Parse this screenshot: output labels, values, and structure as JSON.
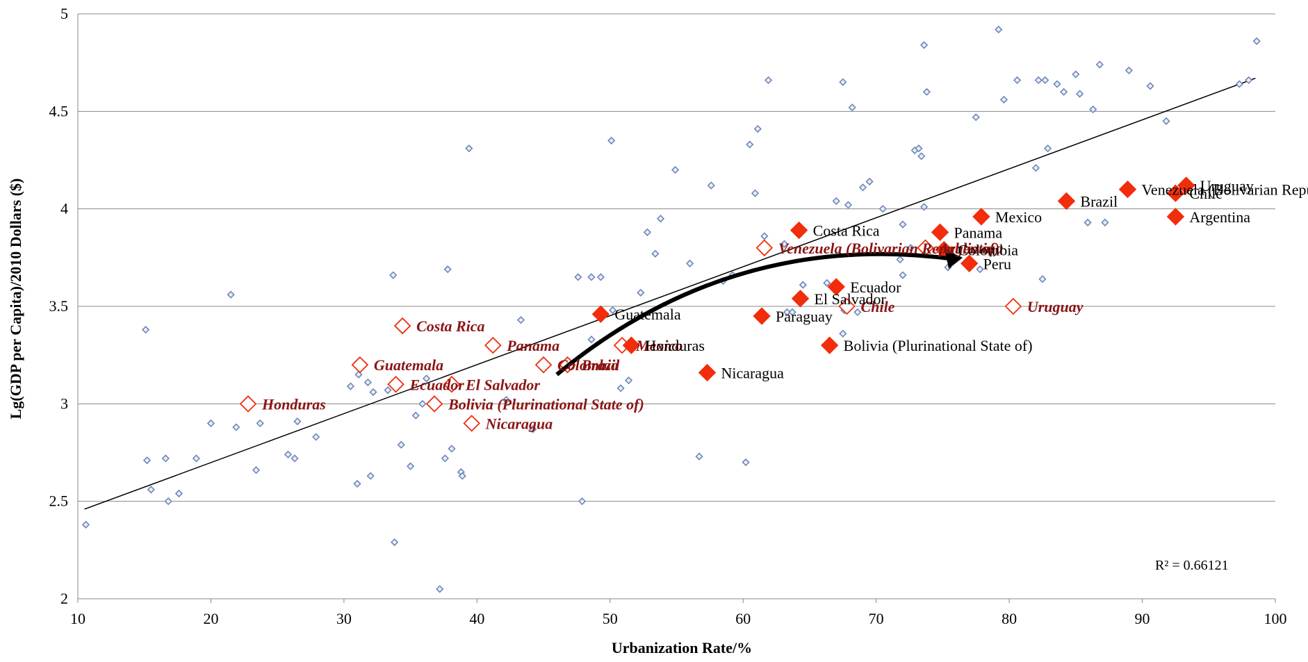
{
  "chart_data": {
    "type": "scatter",
    "xlabel": "Urbanization Rate/%",
    "ylabel": "Lg(GDP per Capita)/2010 Dollars ($)",
    "xlim": [
      10,
      100
    ],
    "ylim": [
      2,
      5
    ],
    "xticks": [
      10,
      20,
      30,
      40,
      50,
      60,
      70,
      80,
      90,
      100
    ],
    "yticks": [
      2,
      2.5,
      3,
      3.5,
      4,
      4.5,
      5
    ],
    "grid": "horizontal",
    "r_squared_text": "R² = 0.66121",
    "colors": {
      "world": "#6f86b8",
      "latam": "#f12d0c",
      "trendline": "#000000",
      "grid": "#888888",
      "label_1980": "#8b1414"
    },
    "trendline": {
      "x": [
        10.5,
        98.5
      ],
      "y": [
        2.46,
        4.67
      ]
    },
    "arrow": {
      "from": [
        46,
        3.15
      ],
      "to": [
        76.5,
        3.75
      ]
    },
    "world_points": [
      [
        10.6,
        2.38
      ],
      [
        15.1,
        3.38
      ],
      [
        15.2,
        2.71
      ],
      [
        15.5,
        2.56
      ],
      [
        16.6,
        2.72
      ],
      [
        16.8,
        2.5
      ],
      [
        17.6,
        2.54
      ],
      [
        18.9,
        2.72
      ],
      [
        20.0,
        2.9
      ],
      [
        21.5,
        3.56
      ],
      [
        21.9,
        2.88
      ],
      [
        23.4,
        2.66
      ],
      [
        23.7,
        2.9
      ],
      [
        25.8,
        2.74
      ],
      [
        26.3,
        2.72
      ],
      [
        26.5,
        2.91
      ],
      [
        27.9,
        2.83
      ],
      [
        30.5,
        3.09
      ],
      [
        31.0,
        2.59
      ],
      [
        31.1,
        3.15
      ],
      [
        31.8,
        3.11
      ],
      [
        32.0,
        2.63
      ],
      [
        32.2,
        3.06
      ],
      [
        33.3,
        3.07
      ],
      [
        33.7,
        3.66
      ],
      [
        33.8,
        2.29
      ],
      [
        34.3,
        2.79
      ],
      [
        35.0,
        2.68
      ],
      [
        35.4,
        2.94
      ],
      [
        35.9,
        3.0
      ],
      [
        36.2,
        3.13
      ],
      [
        37.2,
        2.05
      ],
      [
        37.6,
        2.72
      ],
      [
        37.8,
        3.69
      ],
      [
        38.1,
        2.77
      ],
      [
        38.8,
        2.65
      ],
      [
        38.9,
        2.63
      ],
      [
        39.4,
        4.31
      ],
      [
        42.2,
        3.02
      ],
      [
        43.3,
        3.43
      ],
      [
        44.2,
        2.87
      ],
      [
        47.6,
        3.65
      ],
      [
        47.9,
        2.5
      ],
      [
        48.6,
        3.33
      ],
      [
        48.6,
        3.65
      ],
      [
        49.3,
        3.65
      ],
      [
        50.1,
        4.35
      ],
      [
        50.2,
        3.48
      ],
      [
        50.8,
        3.08
      ],
      [
        51.4,
        3.12
      ],
      [
        52.3,
        3.57
      ],
      [
        52.8,
        3.88
      ],
      [
        53.4,
        3.77
      ],
      [
        53.8,
        3.95
      ],
      [
        54.9,
        4.2
      ],
      [
        56.0,
        3.72
      ],
      [
        56.7,
        2.73
      ],
      [
        57.6,
        4.12
      ],
      [
        58.5,
        3.63
      ],
      [
        59.2,
        3.66
      ],
      [
        60.2,
        2.7
      ],
      [
        60.5,
        4.33
      ],
      [
        60.9,
        4.08
      ],
      [
        61.1,
        4.41
      ],
      [
        61.6,
        3.86
      ],
      [
        61.9,
        4.66
      ],
      [
        63.1,
        3.82
      ],
      [
        63.3,
        3.47
      ],
      [
        63.7,
        3.47
      ],
      [
        64.5,
        3.61
      ],
      [
        66.3,
        3.62
      ],
      [
        67.0,
        4.04
      ],
      [
        67.5,
        4.65
      ],
      [
        67.5,
        3.36
      ],
      [
        67.6,
        3.48
      ],
      [
        67.9,
        4.02
      ],
      [
        68.2,
        4.52
      ],
      [
        68.6,
        3.47
      ],
      [
        69.0,
        4.11
      ],
      [
        69.5,
        4.14
      ],
      [
        70.5,
        4.0
      ],
      [
        71.8,
        3.74
      ],
      [
        72.0,
        3.92
      ],
      [
        72.0,
        3.66
      ],
      [
        72.6,
        3.8
      ],
      [
        72.9,
        4.3
      ],
      [
        73.2,
        4.31
      ],
      [
        73.4,
        4.27
      ],
      [
        73.6,
        4.84
      ],
      [
        73.6,
        4.01
      ],
      [
        73.8,
        4.6
      ],
      [
        75.4,
        3.7
      ],
      [
        77.5,
        4.47
      ],
      [
        77.8,
        3.69
      ],
      [
        79.2,
        4.92
      ],
      [
        79.6,
        4.56
      ],
      [
        80.6,
        4.66
      ],
      [
        82.0,
        4.21
      ],
      [
        82.2,
        4.66
      ],
      [
        82.5,
        3.64
      ],
      [
        82.7,
        4.66
      ],
      [
        82.9,
        4.31
      ],
      [
        83.6,
        4.64
      ],
      [
        84.1,
        4.6
      ],
      [
        85.0,
        4.69
      ],
      [
        85.3,
        4.59
      ],
      [
        85.9,
        3.93
      ],
      [
        86.3,
        4.51
      ],
      [
        86.8,
        4.74
      ],
      [
        87.2,
        3.93
      ],
      [
        89.0,
        4.71
      ],
      [
        90.6,
        4.63
      ],
      [
        91.8,
        4.45
      ],
      [
        97.3,
        4.64
      ],
      [
        98.0,
        4.66
      ],
      [
        98.6,
        4.86
      ]
    ],
    "latam_2010": [
      {
        "name": "Venezuela (Bolivarian Republic of)",
        "x": 88.9,
        "y": 4.1
      },
      {
        "name": "Chile",
        "x": 92.5,
        "y": 4.08
      },
      {
        "name": "Uruguay",
        "x": 93.3,
        "y": 4.12
      },
      {
        "name": "Brazil",
        "x": 84.3,
        "y": 4.04
      },
      {
        "name": "Argentina",
        "x": 92.5,
        "y": 3.96
      },
      {
        "name": "Mexico",
        "x": 77.9,
        "y": 3.96
      },
      {
        "name": "Costa Rica",
        "x": 64.2,
        "y": 3.89
      },
      {
        "name": "Panama",
        "x": 74.8,
        "y": 3.88
      },
      {
        "name": "Colombia",
        "x": 75.1,
        "y": 3.79
      },
      {
        "name": "Peru",
        "x": 77.0,
        "y": 3.72
      },
      {
        "name": "Ecuador",
        "x": 67.0,
        "y": 3.6
      },
      {
        "name": "El Salvador",
        "x": 64.3,
        "y": 3.54
      },
      {
        "name": "Paraguay",
        "x": 61.4,
        "y": 3.45
      },
      {
        "name": "Guatemala",
        "x": 49.3,
        "y": 3.46
      },
      {
        "name": "Honduras",
        "x": 51.6,
        "y": 3.3
      },
      {
        "name": "Bolivia (Plurinational State of)",
        "x": 66.5,
        "y": 3.3
      },
      {
        "name": "Nicaragua",
        "x": 57.3,
        "y": 3.16
      }
    ],
    "latam_1980": [
      {
        "name": "Venezuela (Bolivarian Republic of)",
        "x": 61.6,
        "y": 3.8
      },
      {
        "name": "Costa Rica",
        "x": 34.4,
        "y": 3.4
      },
      {
        "name": "Panama",
        "x": 41.2,
        "y": 3.3
      },
      {
        "name": "Mexico",
        "x": 50.9,
        "y": 3.3
      },
      {
        "name": "Guatemala",
        "x": 31.2,
        "y": 3.2
      },
      {
        "name": "Colombia",
        "x": 45.0,
        "y": 3.2
      },
      {
        "name": "Brazil",
        "x": 46.8,
        "y": 3.2
      },
      {
        "name": "Ecuador",
        "x": 33.9,
        "y": 3.1
      },
      {
        "name": "El Salvador",
        "x": 38.1,
        "y": 3.1
      },
      {
        "name": "Honduras",
        "x": 22.8,
        "y": 3.0
      },
      {
        "name": "Bolivia (Plurinational State of)",
        "x": 36.8,
        "y": 3.0
      },
      {
        "name": "Nicaragua",
        "x": 39.6,
        "y": 2.9
      },
      {
        "name": "Argentina",
        "x": 73.7,
        "y": 3.8
      },
      {
        "name": "Chile",
        "x": 67.8,
        "y": 3.5
      },
      {
        "name": "Uruguay",
        "x": 80.3,
        "y": 3.5
      }
    ]
  }
}
